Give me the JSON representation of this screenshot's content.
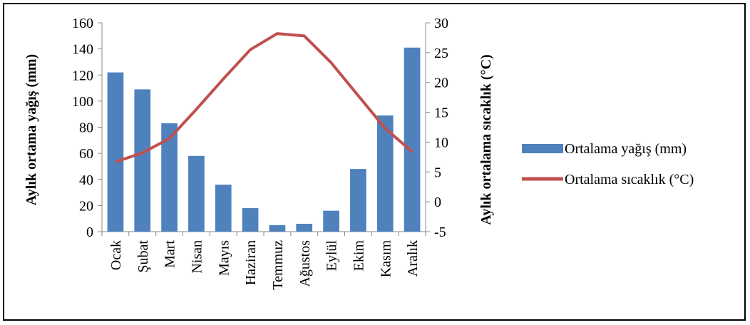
{
  "chart_data": {
    "type": "bar+line",
    "categories": [
      "Ocak",
      "Şubat",
      "Mart",
      "Nisan",
      "Mayıs",
      "Haziran",
      "Temmuz",
      "Ağustos",
      "Eylül",
      "Ekim",
      "Kasım",
      "Aralık"
    ],
    "series": [
      {
        "name": "Ortalama yağış (mm)",
        "type": "bar",
        "axis": "left",
        "color": "#4F81BD",
        "values": [
          122,
          109,
          83,
          58,
          36,
          18,
          5,
          6,
          16,
          48,
          89,
          141
        ]
      },
      {
        "name": "Ortalama sıcaklık (°C)",
        "type": "line",
        "axis": "right",
        "color": "#C0504D",
        "values": [
          6.7,
          8.2,
          10.6,
          15.5,
          20.6,
          25.5,
          28.2,
          27.8,
          23.3,
          17.8,
          12.3,
          8.4
        ]
      }
    ],
    "ylabel": "Aylık ortama yağış (mm)",
    "ylabel_right": "Aylık ortalama sıcaklık (°C)",
    "ylim": [
      0,
      160
    ],
    "ylim_right": [
      -5,
      30
    ],
    "yticks": [
      "0",
      "20",
      "40",
      "60",
      "80",
      "100",
      "120",
      "140",
      "160"
    ],
    "yticks_right": [
      "-5",
      "0",
      "5",
      "10",
      "15",
      "20",
      "25",
      "30"
    ],
    "grid": false,
    "legend_position": "right"
  }
}
